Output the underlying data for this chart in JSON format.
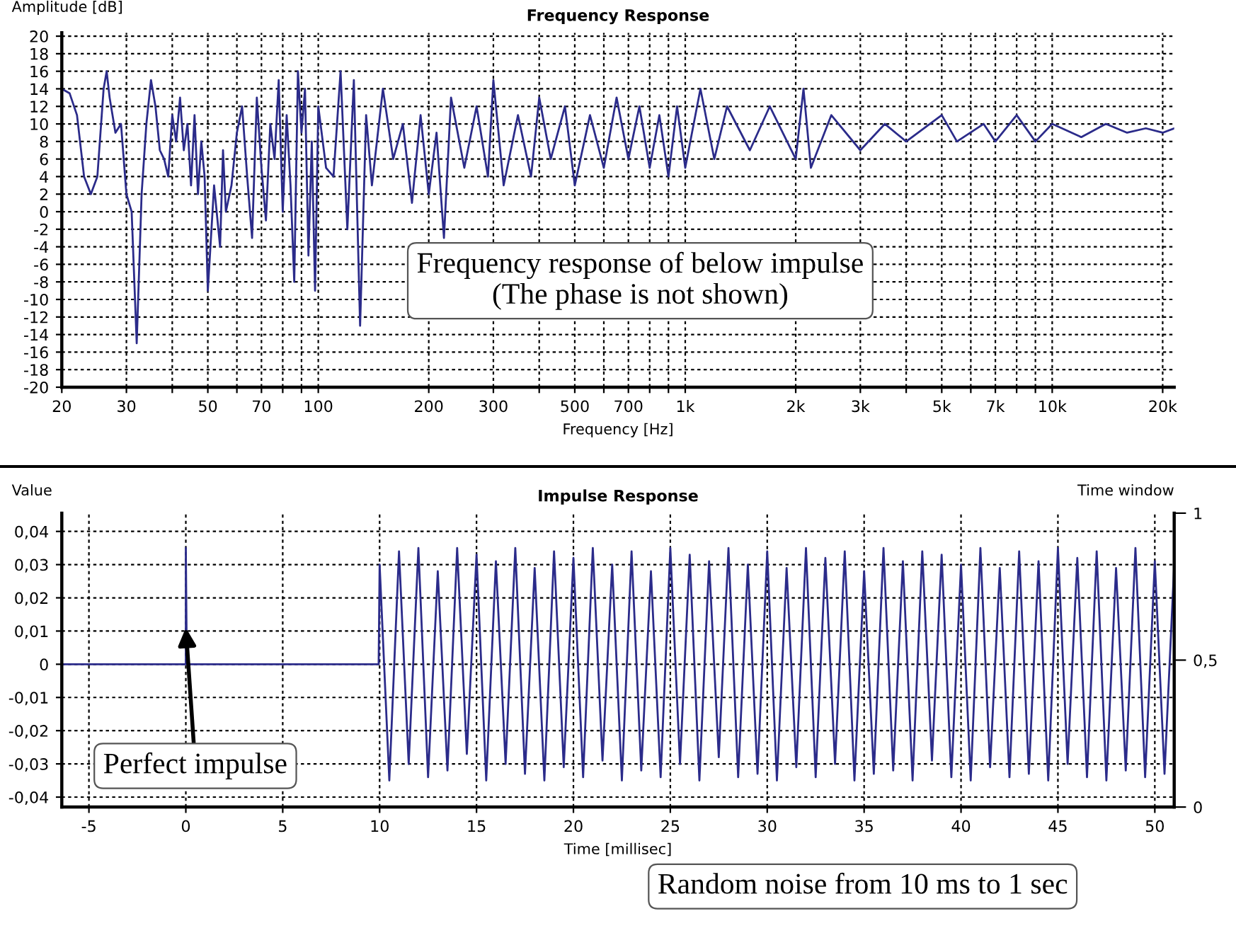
{
  "chart_data": [
    {
      "type": "line",
      "title": "Frequency Response",
      "xlabel": "Frequency [Hz]",
      "ylabel": "Amplitude [dB]",
      "log": "x",
      "grid": true,
      "line_style": "solid",
      "series": [
        {
          "color": "#2b2b8a",
          "x": [
            20,
            21,
            22,
            23,
            24,
            25,
            26,
            26.5,
            27,
            28,
            29,
            30,
            31,
            32,
            33,
            34,
            35,
            36,
            37,
            38,
            39,
            40,
            41,
            42,
            43,
            44,
            45,
            46,
            47,
            48,
            49,
            50,
            52,
            54,
            55,
            56,
            58,
            60,
            62,
            64,
            66,
            68,
            70,
            72,
            74,
            76,
            78,
            80,
            82,
            84,
            86,
            88,
            90,
            92,
            94,
            96,
            98,
            100,
            105,
            110,
            115,
            120,
            125,
            130,
            135,
            140,
            150,
            160,
            170,
            180,
            190,
            200,
            210,
            220,
            230,
            250,
            270,
            290,
            300,
            320,
            350,
            380,
            400,
            430,
            470,
            500,
            550,
            600,
            650,
            700,
            750,
            800,
            850,
            900,
            950,
            1000,
            1100,
            1200,
            1300,
            1500,
            1700,
            2000,
            2100,
            2200,
            2500,
            3000,
            3500,
            4000,
            5000,
            5500,
            6500,
            7000,
            8000,
            9000,
            10000,
            12000,
            14000,
            16000,
            18000,
            20000,
            21500
          ],
          "values": [
            14,
            13.5,
            11,
            4,
            2,
            4,
            14,
            16,
            13,
            9,
            10,
            2,
            0,
            -15,
            2,
            10,
            15,
            12,
            7,
            6,
            4,
            11,
            8,
            13,
            7,
            10,
            3,
            11,
            2,
            8,
            4,
            -9,
            3,
            -4,
            7,
            0,
            3,
            9,
            12,
            4,
            -3,
            13,
            5,
            -1,
            10,
            6,
            15,
            0,
            11,
            3,
            -8,
            16,
            9,
            14,
            -5,
            8,
            -9,
            12,
            5,
            4,
            16,
            -2,
            15,
            -13,
            11,
            3,
            14,
            6,
            10,
            1,
            11,
            2,
            9,
            -3,
            13,
            5,
            12,
            4,
            15,
            3,
            11,
            4,
            13,
            6,
            12,
            3,
            11,
            5,
            13,
            6,
            12,
            5,
            11,
            4,
            12,
            5,
            14,
            6,
            12,
            7,
            12,
            6,
            14,
            5,
            11,
            7,
            10,
            8,
            11,
            8,
            10,
            8,
            11,
            8,
            10,
            8.5,
            10,
            9,
            9.5,
            9,
            9.5
          ]
        }
      ],
      "xlim": [
        20,
        21500
      ],
      "ylim": [
        -20,
        20.4
      ],
      "xticks": [
        20,
        30,
        {
          "value": 40,
          "label": null
        },
        50,
        {
          "value": 60,
          "label": null
        },
        70,
        {
          "value": 80,
          "label": null
        },
        {
          "value": 90,
          "label": null
        },
        100,
        200,
        300,
        {
          "value": 400,
          "label": null
        },
        500,
        {
          "value": 600,
          "label": null
        },
        700,
        {
          "value": 800,
          "label": null
        },
        {
          "value": 900,
          "label": null
        },
        {
          "value": 1000,
          "label": "1k"
        },
        {
          "value": 2000,
          "label": "2k"
        },
        {
          "value": 3000,
          "label": "3k"
        },
        {
          "value": 4000,
          "label": null
        },
        {
          "value": 5000,
          "label": "5k"
        },
        {
          "value": 6000,
          "label": null
        },
        {
          "value": 7000,
          "label": "7k"
        },
        {
          "value": 8000,
          "label": null
        },
        {
          "value": 9000,
          "label": null
        },
        {
          "value": 10000,
          "label": "10k"
        },
        {
          "value": 20000,
          "label": "20k"
        }
      ],
      "yticks": [
        -20,
        -18,
        -16,
        -14,
        -12,
        -10,
        -8,
        -6,
        -4,
        -2,
        0,
        2,
        4,
        6,
        8,
        10,
        12,
        14,
        16,
        18,
        20
      ],
      "annotations": [
        "Frequency response of below impulse\n(The phase is not shown)"
      ]
    },
    {
      "type": "line",
      "title": "Impulse Response",
      "xlabel": "Time [millisec]",
      "ylabel": "Value",
      "y2label": "Time window",
      "grid": true,
      "line_style": "solid",
      "series": [
        {
          "color": "#2b2b8a",
          "x": [
            -6.4,
            0,
            0,
            0.05,
            9.95,
            10,
            10.5,
            11,
            11.5,
            12,
            12.5,
            13,
            13.5,
            14,
            14.5,
            15,
            15.5,
            16,
            16.5,
            17,
            17.5,
            18,
            18.5,
            19,
            19.5,
            20,
            20.5,
            21,
            21.5,
            22,
            22.5,
            23,
            23.5,
            24,
            24.5,
            25,
            25.5,
            26,
            26.5,
            27,
            27.5,
            28,
            28.5,
            29,
            29.5,
            30,
            30.5,
            31,
            31.5,
            32,
            32.5,
            33,
            33.5,
            34,
            34.5,
            35,
            35.5,
            36,
            36.5,
            37,
            37.5,
            38,
            38.5,
            39,
            39.5,
            40,
            40.5,
            41,
            41.5,
            42,
            42.5,
            43,
            43.5,
            44,
            44.5,
            45,
            45.5,
            46,
            46.5,
            47,
            47.5,
            48,
            48.5,
            49,
            49.5,
            50,
            50.5,
            51
          ],
          "values": [
            0,
            0,
            0.035,
            0,
            0,
            0.03,
            -0.035,
            0.034,
            -0.03,
            0.035,
            -0.034,
            0.028,
            -0.032,
            0.035,
            -0.027,
            0.033,
            -0.035,
            0.031,
            -0.03,
            0.035,
            -0.033,
            0.029,
            -0.035,
            0.034,
            -0.031,
            0.032,
            -0.034,
            0.035,
            -0.029,
            0.03,
            -0.035,
            0.034,
            -0.032,
            0.028,
            -0.034,
            0.035,
            -0.03,
            0.033,
            -0.035,
            0.031,
            -0.028,
            0.035,
            -0.034,
            0.03,
            -0.033,
            0.034,
            -0.035,
            0.029,
            -0.031,
            0.035,
            -0.034,
            0.032,
            -0.03,
            0.034,
            -0.035,
            0.028,
            -0.033,
            0.035,
            -0.032,
            0.031,
            -0.035,
            0.034,
            -0.029,
            0.033,
            -0.034,
            0.03,
            -0.035,
            0.035,
            -0.031,
            0.029,
            -0.034,
            0.034,
            -0.033,
            0.031,
            -0.035,
            0.035,
            -0.03,
            0.032,
            -0.034,
            0.034,
            -0.035,
            0.029,
            -0.032,
            0.035,
            -0.034,
            0.031,
            -0.033,
            0.03
          ]
        }
      ],
      "xlim": [
        -6.4,
        51
      ],
      "ylim": [
        -0.043,
        0.0455
      ],
      "y2lim": [
        0,
        1
      ],
      "xticks": [
        -5,
        0,
        5,
        10,
        15,
        20,
        25,
        30,
        35,
        40,
        45,
        50
      ],
      "yticks": [
        {
          "value": -0.04,
          "label": "-0,04"
        },
        {
          "value": -0.03,
          "label": "-0,03"
        },
        {
          "value": -0.02,
          "label": "-0,02"
        },
        {
          "value": -0.01,
          "label": "-0,01"
        },
        0,
        {
          "value": 0.01,
          "label": "0,01"
        },
        {
          "value": 0.02,
          "label": "0,02"
        },
        {
          "value": 0.03,
          "label": "0,03"
        },
        {
          "value": 0.04,
          "label": "0,04"
        }
      ],
      "y2ticks": [
        0,
        {
          "value": 0.5,
          "label": "0,5"
        },
        1
      ],
      "annotations": [
        {
          "text": "Perfect impulse",
          "x": 0,
          "y": 0.011
        },
        "Random noise from 10 ms to 1 sec"
      ]
    }
  ]
}
